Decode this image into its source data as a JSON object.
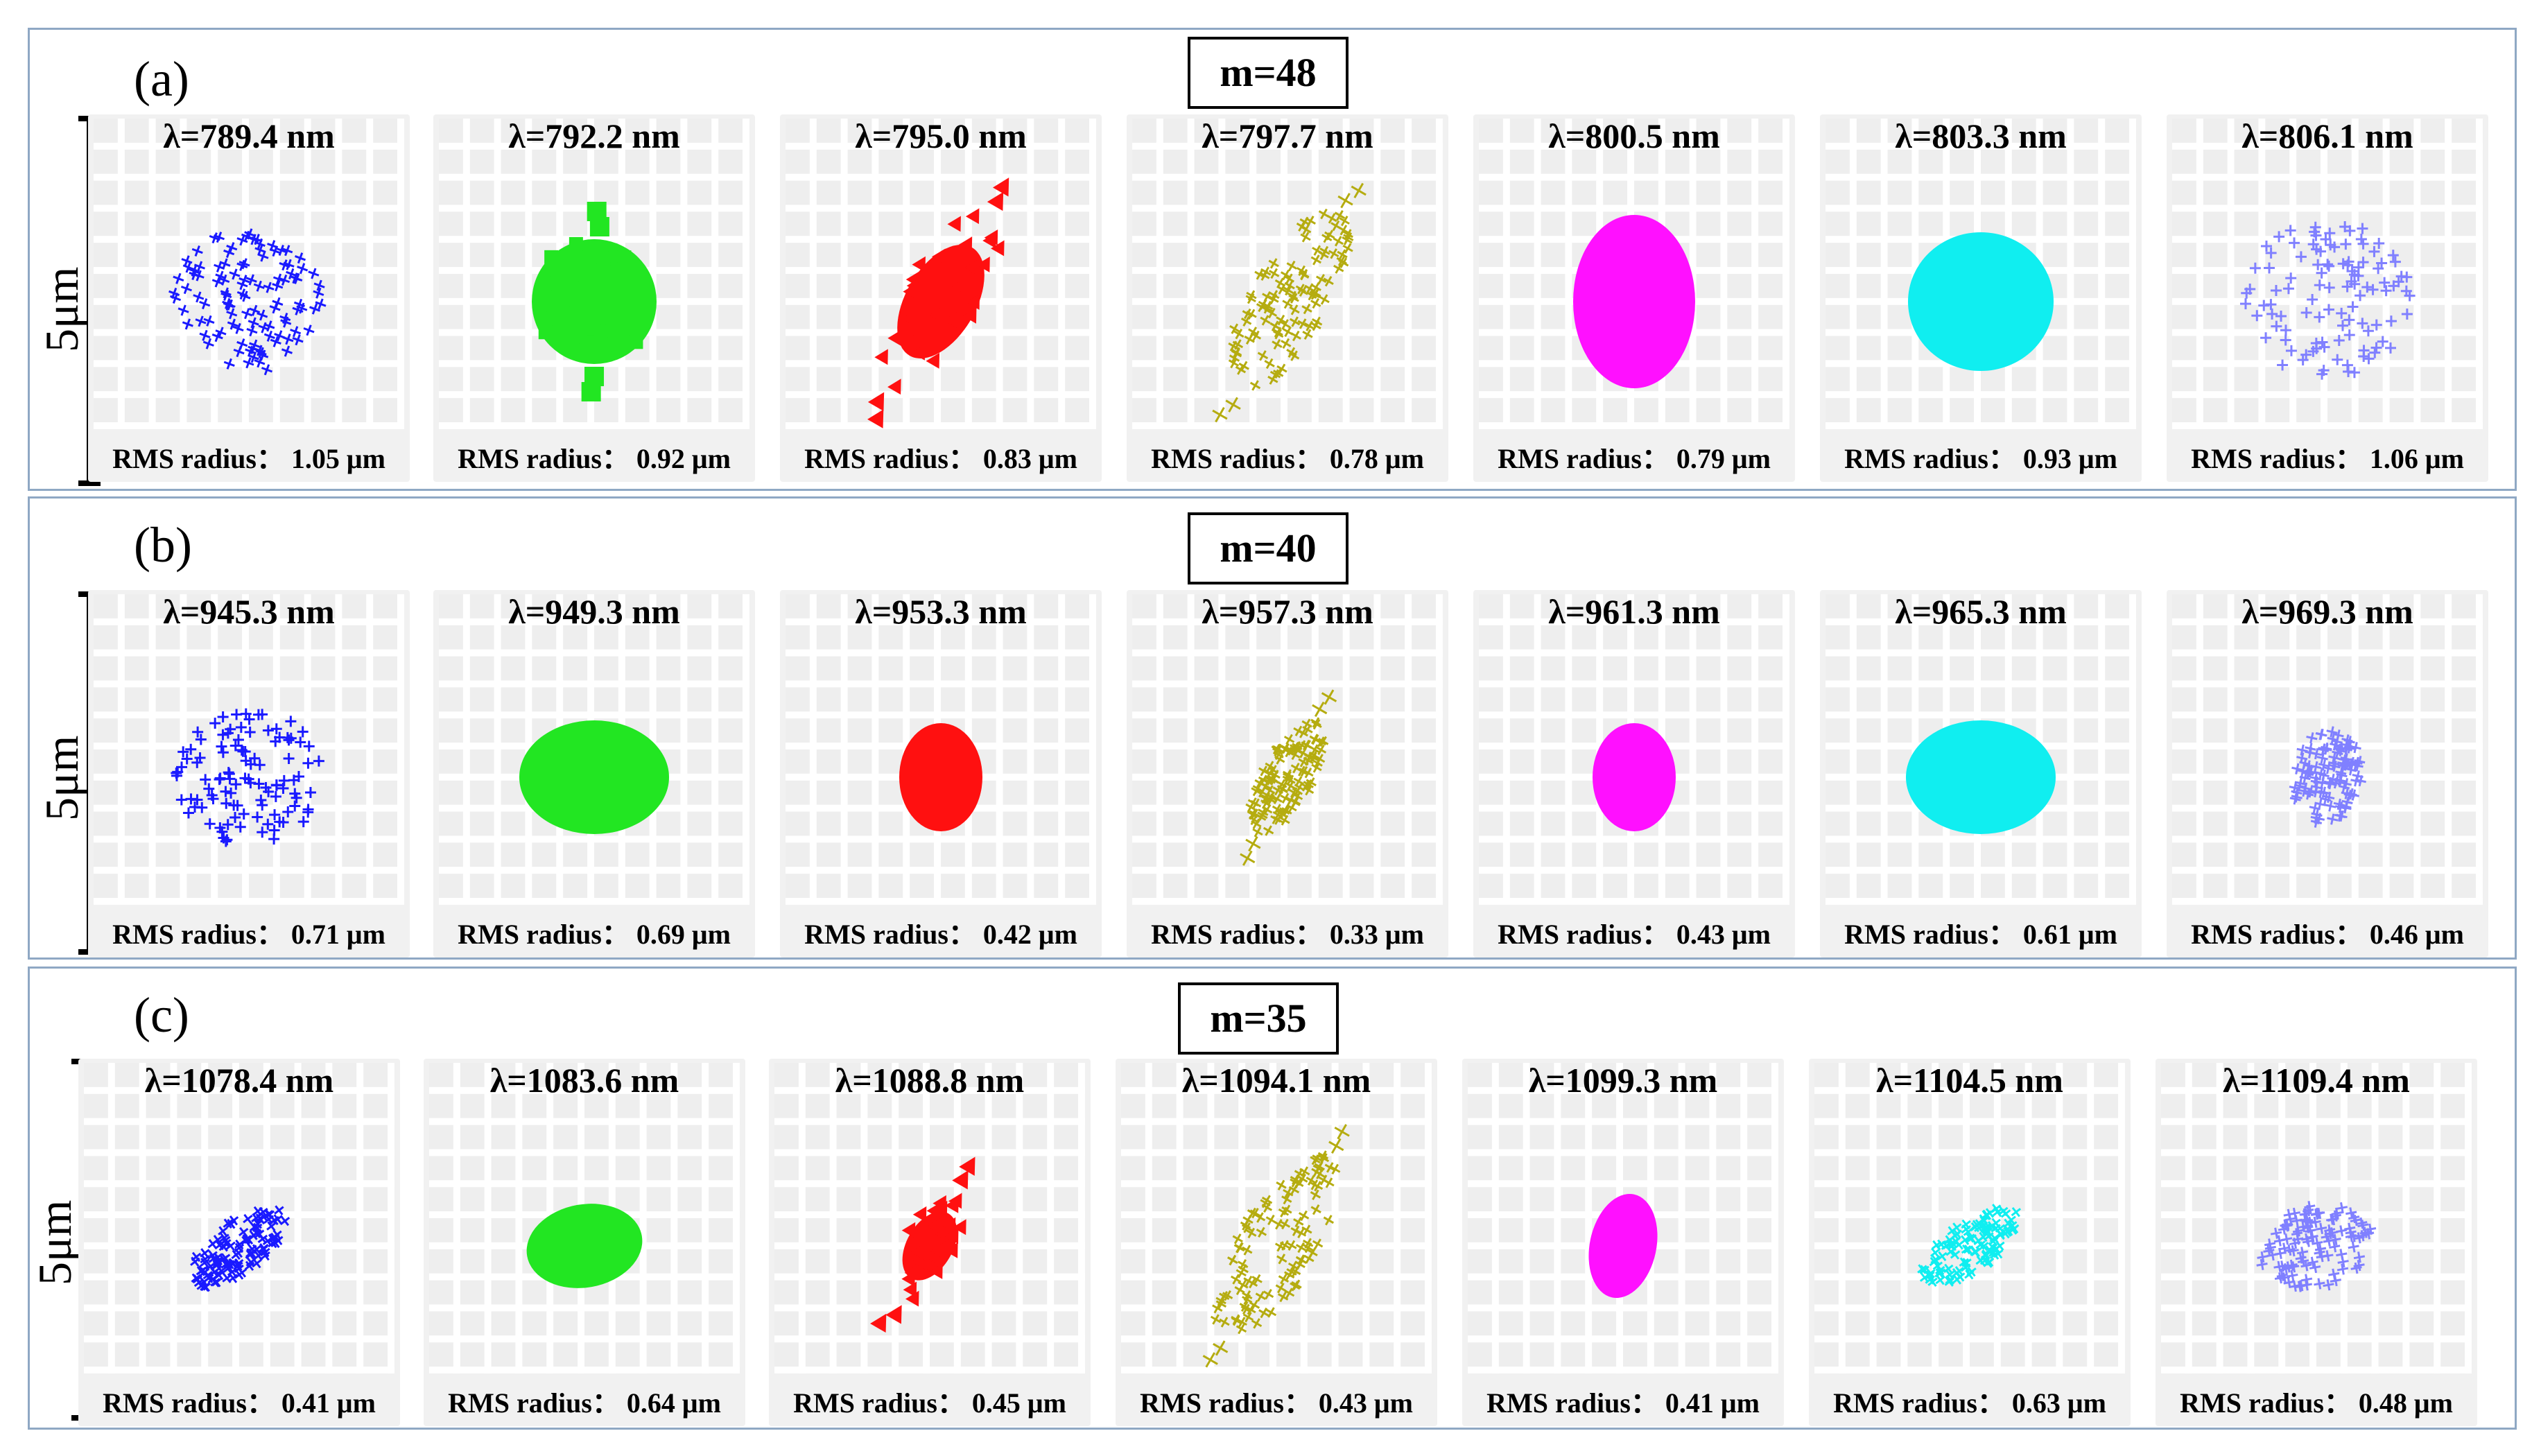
{
  "scale_label": "5μm",
  "panels": [
    {
      "label": "(a)",
      "m": "m=48",
      "cells": [
        {
          "wavelength": "λ=789.4 nm",
          "rms": "RMS radius：  1.05 μm",
          "color": "#1a1aff",
          "marker": "plus",
          "shape": "round-tilt"
        },
        {
          "wavelength": "λ=792.2 nm",
          "rms": "RMS radius：  0.92 μm",
          "color": "#22e622",
          "marker": "square",
          "shape": "round-tail"
        },
        {
          "wavelength": "λ=795.0 nm",
          "rms": "RMS radius：  0.83 μm",
          "color": "#ff1010",
          "marker": "triangle",
          "shape": "diag-long"
        },
        {
          "wavelength": "λ=797.7 nm",
          "rms": "RMS radius：  0.78 μm",
          "color": "#b5ac10",
          "marker": "plus",
          "shape": "diag-long"
        },
        {
          "wavelength": "λ=800.5 nm",
          "rms": "RMS radius：  0.79 μm",
          "color": "#ff10ff",
          "marker": "filled",
          "shape": "oval-v"
        },
        {
          "wavelength": "λ=803.3 nm",
          "rms": "RMS radius：  0.93 μm",
          "color": "#10eef0",
          "marker": "filled",
          "shape": "round"
        },
        {
          "wavelength": "λ=806.1 nm",
          "rms": "RMS radius：  1.06 μm",
          "color": "#8080ff",
          "marker": "plus",
          "shape": "round-big"
        }
      ]
    },
    {
      "label": "(b)",
      "m": "m=40",
      "cells": [
        {
          "wavelength": "λ=945.3 nm",
          "rms": "RMS radius：  0.71 μm",
          "color": "#1a1aff",
          "marker": "plus",
          "shape": "round"
        },
        {
          "wavelength": "λ=949.3 nm",
          "rms": "RMS radius：  0.69 μm",
          "color": "#22e622",
          "marker": "filled",
          "shape": "oval-h"
        },
        {
          "wavelength": "λ=953.3 nm",
          "rms": "RMS radius：  0.42 μm",
          "color": "#ff1010",
          "marker": "filled",
          "shape": "small"
        },
        {
          "wavelength": "λ=957.3 nm",
          "rms": "RMS radius：  0.33 μm",
          "color": "#b5ac10",
          "marker": "plus",
          "shape": "diag-short"
        },
        {
          "wavelength": "λ=961.3 nm",
          "rms": "RMS radius：  0.43 μm",
          "color": "#ff10ff",
          "marker": "filled",
          "shape": "small"
        },
        {
          "wavelength": "λ=965.3 nm",
          "rms": "RMS radius：  0.61 μm",
          "color": "#10eef0",
          "marker": "filled",
          "shape": "oval-h"
        },
        {
          "wavelength": "λ=969.3 nm",
          "rms": "RMS radius：  0.46 μm",
          "color": "#8080ff",
          "marker": "plus",
          "shape": "oval-v-small"
        }
      ]
    },
    {
      "label": "(c)",
      "m": "m=35",
      "cells": [
        {
          "wavelength": "λ=1078.4 nm",
          "rms": "RMS radius：  0.41 μm",
          "color": "#1a1aff",
          "marker": "plus",
          "shape": "tilt-small"
        },
        {
          "wavelength": "λ=1083.6 nm",
          "rms": "RMS radius：  0.64 μm",
          "color": "#22e622",
          "marker": "filled",
          "shape": "blob"
        },
        {
          "wavelength": "λ=1088.8 nm",
          "rms": "RMS radius：  0.45 μm",
          "color": "#ff1010",
          "marker": "triangle",
          "shape": "diag-short"
        },
        {
          "wavelength": "λ=1094.1 nm",
          "rms": "RMS radius：  0.43 μm",
          "color": "#b5ac10",
          "marker": "plus",
          "shape": "diag-long"
        },
        {
          "wavelength": "λ=1099.3 nm",
          "rms": "RMS radius：  0.41 μm",
          "color": "#ff10ff",
          "marker": "filled",
          "shape": "oval-v-small"
        },
        {
          "wavelength": "λ=1104.5 nm",
          "rms": "RMS radius：  0.63 μm",
          "color": "#10eef0",
          "marker": "plus",
          "shape": "tilt-small"
        },
        {
          "wavelength": "λ=1109.4 nm",
          "rms": "RMS radius：  0.48 μm",
          "color": "#8080ff",
          "marker": "plus",
          "shape": "blob"
        }
      ]
    }
  ]
}
